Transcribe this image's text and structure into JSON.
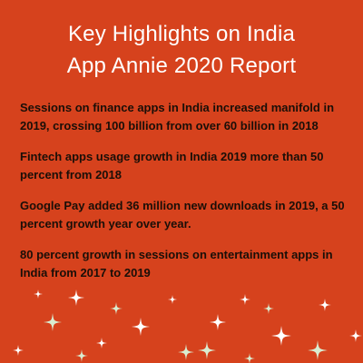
{
  "title": {
    "line1": "Key Highlights on India",
    "line2": "App Annie 2020 Report"
  },
  "highlights": [
    "Sessions on finance apps in India increased manifold in 2019, crossing 100 billion from over 60 billion in 2018",
    "Fintech apps usage growth in India 2019 more than 50 percent from 2018",
    "Google Pay added 36 million new downloads in 2019, a 50 percent growth year over year.",
    "80 percent growth in sessions on entertainment apps in India from 2017 to 2019"
  ],
  "colors": {
    "background": "#d6421d",
    "title_text": "#ffffff",
    "body_text": "#1a0f08",
    "sparkle_white": "#ffffff",
    "sparkle_green": "#d9ecd0"
  },
  "decoration": {
    "icon": "sparkle-icon"
  }
}
